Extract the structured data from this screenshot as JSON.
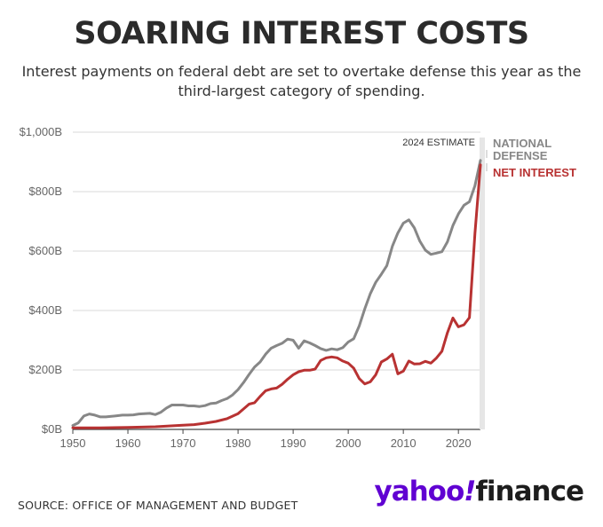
{
  "header": {
    "title": "SOARING INTEREST COSTS",
    "subtitle": "Interest payments on federal debt are set to overtake defense this year as the third-largest category of spending."
  },
  "footer": {
    "source": "SOURCE: OFFICE OF MANAGEMENT AND BUDGET",
    "logo_part1": "yahoo",
    "logo_part2": "!",
    "logo_part3": "finance"
  },
  "chart_data": {
    "type": "line",
    "title": "",
    "xlabel": "",
    "ylabel": "",
    "xlim": [
      1950,
      2024
    ],
    "ylim": [
      0,
      1000
    ],
    "x_ticks": [
      1950,
      1960,
      1970,
      1980,
      1990,
      2000,
      2010,
      2020
    ],
    "x_tick_labels": [
      "1950",
      "1960",
      "1970",
      "1980",
      "1990",
      "2000",
      "2010",
      "2020"
    ],
    "y_ticks": [
      0,
      200,
      400,
      600,
      800,
      1000
    ],
    "y_tick_labels": [
      "$0B",
      "$200B",
      "$400B",
      "$600B",
      "$800B",
      "$1,000B"
    ],
    "grid": true,
    "annotation": "2024 ESTIMATE",
    "annotation_x": 2024,
    "series": [
      {
        "name": "NATIONAL DEFENSE",
        "color": "#878787",
        "points": [
          [
            1950,
            13
          ],
          [
            1951,
            22
          ],
          [
            1952,
            45
          ],
          [
            1953,
            52
          ],
          [
            1954,
            48
          ],
          [
            1955,
            42
          ],
          [
            1956,
            42
          ],
          [
            1957,
            44
          ],
          [
            1958,
            46
          ],
          [
            1959,
            48
          ],
          [
            1960,
            48
          ],
          [
            1961,
            49
          ],
          [
            1962,
            52
          ],
          [
            1963,
            53
          ],
          [
            1964,
            54
          ],
          [
            1965,
            50
          ],
          [
            1966,
            58
          ],
          [
            1967,
            72
          ],
          [
            1968,
            82
          ],
          [
            1969,
            82
          ],
          [
            1970,
            82
          ],
          [
            1971,
            79
          ],
          [
            1972,
            79
          ],
          [
            1973,
            77
          ],
          [
            1974,
            80
          ],
          [
            1975,
            87
          ],
          [
            1976,
            89
          ],
          [
            1977,
            97
          ],
          [
            1978,
            104
          ],
          [
            1979,
            116
          ],
          [
            1980,
            134
          ],
          [
            1981,
            158
          ],
          [
            1982,
            185
          ],
          [
            1983,
            210
          ],
          [
            1984,
            227
          ],
          [
            1985,
            253
          ],
          [
            1986,
            273
          ],
          [
            1987,
            282
          ],
          [
            1988,
            290
          ],
          [
            1989,
            304
          ],
          [
            1990,
            300
          ],
          [
            1991,
            273
          ],
          [
            1992,
            298
          ],
          [
            1993,
            291
          ],
          [
            1994,
            282
          ],
          [
            1995,
            272
          ],
          [
            1996,
            266
          ],
          [
            1997,
            271
          ],
          [
            1998,
            268
          ],
          [
            1999,
            275
          ],
          [
            2000,
            294
          ],
          [
            2001,
            305
          ],
          [
            2002,
            348
          ],
          [
            2003,
            405
          ],
          [
            2004,
            456
          ],
          [
            2005,
            495
          ],
          [
            2006,
            522
          ],
          [
            2007,
            551
          ],
          [
            2008,
            616
          ],
          [
            2009,
            661
          ],
          [
            2010,
            694
          ],
          [
            2011,
            705
          ],
          [
            2012,
            678
          ],
          [
            2013,
            633
          ],
          [
            2014,
            603
          ],
          [
            2015,
            589
          ],
          [
            2016,
            593
          ],
          [
            2017,
            598
          ],
          [
            2018,
            631
          ],
          [
            2019,
            686
          ],
          [
            2020,
            725
          ],
          [
            2021,
            754
          ],
          [
            2022,
            766
          ],
          [
            2023,
            820
          ],
          [
            2024,
            905
          ]
        ]
      },
      {
        "name": "NET INTEREST",
        "color": "#b83232",
        "points": [
          [
            1950,
            5
          ],
          [
            1955,
            5
          ],
          [
            1960,
            7
          ],
          [
            1965,
            9
          ],
          [
            1970,
            14
          ],
          [
            1972,
            16
          ],
          [
            1974,
            21
          ],
          [
            1976,
            27
          ],
          [
            1978,
            36
          ],
          [
            1980,
            53
          ],
          [
            1981,
            69
          ],
          [
            1982,
            85
          ],
          [
            1983,
            90
          ],
          [
            1984,
            111
          ],
          [
            1985,
            130
          ],
          [
            1986,
            136
          ],
          [
            1987,
            139
          ],
          [
            1988,
            152
          ],
          [
            1989,
            169
          ],
          [
            1990,
            184
          ],
          [
            1991,
            194
          ],
          [
            1992,
            199
          ],
          [
            1993,
            199
          ],
          [
            1994,
            203
          ],
          [
            1995,
            232
          ],
          [
            1996,
            241
          ],
          [
            1997,
            244
          ],
          [
            1998,
            241
          ],
          [
            1999,
            230
          ],
          [
            2000,
            223
          ],
          [
            2001,
            206
          ],
          [
            2002,
            171
          ],
          [
            2003,
            153
          ],
          [
            2004,
            160
          ],
          [
            2005,
            184
          ],
          [
            2006,
            227
          ],
          [
            2007,
            237
          ],
          [
            2008,
            253
          ],
          [
            2009,
            187
          ],
          [
            2010,
            196
          ],
          [
            2011,
            230
          ],
          [
            2012,
            220
          ],
          [
            2013,
            221
          ],
          [
            2014,
            229
          ],
          [
            2015,
            223
          ],
          [
            2016,
            240
          ],
          [
            2017,
            263
          ],
          [
            2018,
            325
          ],
          [
            2019,
            375
          ],
          [
            2020,
            345
          ],
          [
            2021,
            352
          ],
          [
            2022,
            376
          ],
          [
            2023,
            659
          ],
          [
            2024,
            890
          ]
        ]
      }
    ],
    "legend_placement": "right"
  }
}
